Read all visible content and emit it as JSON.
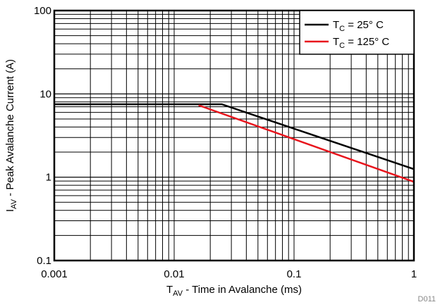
{
  "chart_data": {
    "type": "line",
    "title": "",
    "xlabel": {
      "main": "T",
      "sub": "AV",
      "rest": " - Time in Avalanche (ms)"
    },
    "ylabel": {
      "main": "I",
      "sub": "AV",
      "rest": " - Peak Avalanche Current (A)"
    },
    "x_scale": "log",
    "y_scale": "log",
    "xlim": [
      0.001,
      1
    ],
    "ylim": [
      0.1,
      100
    ],
    "x_ticks": [
      {
        "value": 0.001,
        "label": "0.001"
      },
      {
        "value": 0.01,
        "label": "0.01"
      },
      {
        "value": 0.1,
        "label": "0.1"
      },
      {
        "value": 1,
        "label": "1"
      }
    ],
    "y_ticks": [
      {
        "value": 0.1,
        "label": "0.1"
      },
      {
        "value": 1,
        "label": "1"
      },
      {
        "value": 10,
        "label": "10"
      },
      {
        "value": 100,
        "label": "100"
      }
    ],
    "grid": true,
    "legend_position": "top-right",
    "series": [
      {
        "name": "TC = 25° C",
        "label_main": "T",
        "label_sub": "C",
        "label_rest": " = 25° C",
        "color": "#000000",
        "points": [
          [
            0.001,
            7.5
          ],
          [
            0.025,
            7.5
          ],
          [
            1,
            1.25
          ]
        ]
      },
      {
        "name": "TC = 125° C",
        "label_main": "T",
        "label_sub": "C",
        "label_rest": " = 125° C",
        "color": "#e8141c",
        "points": [
          [
            0.016,
            7.3
          ],
          [
            1,
            0.88
          ]
        ]
      }
    ],
    "footnote": "D011"
  }
}
